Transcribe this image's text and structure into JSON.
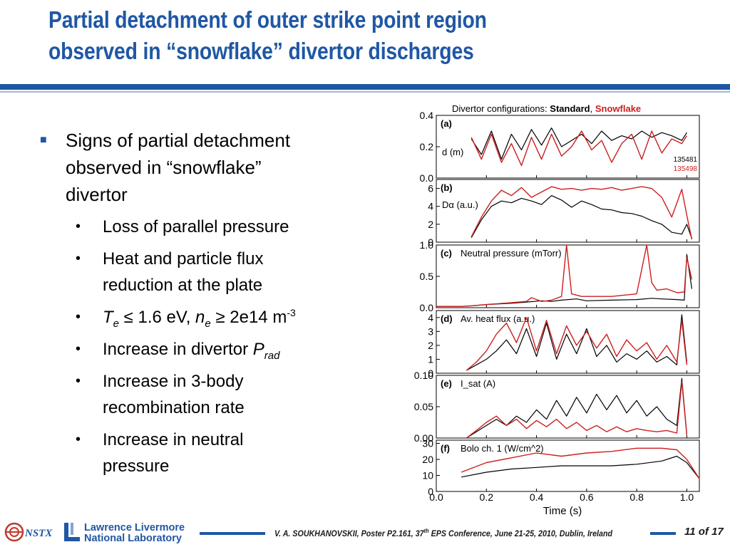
{
  "title_lines": [
    "Partial detachment of outer strike point region",
    "observed in “snowflake” divertor discharges"
  ],
  "bullet": {
    "main_lines": [
      "Signs of partial detachment",
      "observed in “snowflake”",
      "divertor"
    ],
    "sub": {
      "loss": "Loss of parallel pressure",
      "heat_lines": [
        "Heat and particle flux",
        "reduction at the plate"
      ],
      "te_sym": "T",
      "te_sub": "e",
      "te_mid": " ≤ 1.6 eV, ",
      "ne_sym": "n",
      "ne_sub": "e",
      "ne_mid": " ≥ 2e14 m",
      "ne_exp": "-3",
      "prad_pre": "Increase in divertor ",
      "prad_sym": "P",
      "prad_sub": "rad",
      "recomb_lines": [
        "Increase in 3-body",
        "recombination rate"
      ],
      "neutral_lines": [
        "Increase in neutral",
        "pressure"
      ]
    }
  },
  "footer": {
    "pre": "V. A. SOUKHANOVSKII, Poster P2.161, 37",
    "sup": "th",
    "post": " EPS Conference, June 21-25, 2010, Dublin, Ireland",
    "page": "11 of 17",
    "nstx": "NSTX",
    "lab_lines": [
      "Lawrence Livermore",
      "National Laboratory"
    ]
  },
  "colors": {
    "standard": "#000000",
    "snowflake": "#cc1f1f",
    "title": "#1f57a4"
  },
  "chart_data": {
    "type": "line",
    "header_prefix": "Divertor configurations: ",
    "header_standard": "Standard",
    "header_sep": ", ",
    "header_snowflake": "Snowflake",
    "xlabel": "Time (s)",
    "xlim": [
      0.0,
      1.05
    ],
    "xticks": [
      "0.0",
      "0.2",
      "0.4",
      "0.6",
      "0.8",
      "1.0"
    ],
    "shots": [
      "135481",
      "135498"
    ],
    "panels": [
      {
        "label": "(a)",
        "annotation": "d (m)",
        "ylim": [
          0,
          0.4
        ],
        "yticks": [
          0.0,
          0.2,
          0.4
        ],
        "ytick_labels": [
          "0.0",
          "0.2",
          "0.4"
        ],
        "series": [
          {
            "style": "standard",
            "x": [
              0.14,
              0.18,
              0.22,
              0.26,
              0.3,
              0.34,
              0.38,
              0.42,
              0.46,
              0.5,
              0.54,
              0.58,
              0.62,
              0.66,
              0.7,
              0.74,
              0.78,
              0.82,
              0.86,
              0.9,
              0.94,
              0.98,
              1.0
            ],
            "y": [
              0.25,
              0.15,
              0.3,
              0.12,
              0.28,
              0.18,
              0.31,
              0.21,
              0.32,
              0.2,
              0.24,
              0.28,
              0.22,
              0.3,
              0.24,
              0.27,
              0.25,
              0.3,
              0.26,
              0.29,
              0.27,
              0.24,
              0.29
            ]
          },
          {
            "style": "snowflake",
            "x": [
              0.14,
              0.18,
              0.22,
              0.26,
              0.3,
              0.34,
              0.38,
              0.42,
              0.46,
              0.5,
              0.54,
              0.58,
              0.62,
              0.66,
              0.7,
              0.74,
              0.78,
              0.82,
              0.86,
              0.9,
              0.94,
              0.98,
              1.0
            ],
            "y": [
              0.26,
              0.12,
              0.28,
              0.1,
              0.22,
              0.08,
              0.26,
              0.12,
              0.28,
              0.14,
              0.2,
              0.3,
              0.18,
              0.24,
              0.1,
              0.22,
              0.28,
              0.12,
              0.3,
              0.16,
              0.25,
              0.22,
              0.27
            ]
          }
        ]
      },
      {
        "label": "(b)",
        "annotation": "Dα (a.u.)",
        "ylim": [
          0,
          7
        ],
        "yticks": [
          0,
          2,
          4,
          6
        ],
        "ytick_labels": [
          "0",
          "2",
          "4",
          "6"
        ],
        "series": [
          {
            "style": "standard",
            "x": [
              0.14,
              0.18,
              0.22,
              0.26,
              0.3,
              0.34,
              0.38,
              0.42,
              0.46,
              0.5,
              0.54,
              0.58,
              0.62,
              0.66,
              0.7,
              0.74,
              0.78,
              0.82,
              0.86,
              0.9,
              0.94,
              0.98,
              1.0,
              1.02
            ],
            "y": [
              0.5,
              2.5,
              4.0,
              4.6,
              4.4,
              4.9,
              4.6,
              4.2,
              5.2,
              4.7,
              3.9,
              4.6,
              4.2,
              3.7,
              3.6,
              3.3,
              3.2,
              2.9,
              2.4,
              2.0,
              1.1,
              0.9,
              2.0,
              0.4
            ]
          },
          {
            "style": "snowflake",
            "x": [
              0.14,
              0.18,
              0.22,
              0.26,
              0.3,
              0.34,
              0.38,
              0.42,
              0.46,
              0.5,
              0.54,
              0.58,
              0.62,
              0.66,
              0.7,
              0.74,
              0.78,
              0.82,
              0.86,
              0.9,
              0.94,
              0.98,
              1.0,
              1.02
            ],
            "y": [
              0.6,
              2.8,
              4.6,
              5.8,
              5.2,
              6.1,
              5.0,
              5.6,
              6.2,
              5.9,
              6.0,
              5.8,
              6.0,
              5.9,
              6.1,
              5.8,
              6.0,
              6.2,
              6.0,
              5.0,
              2.8,
              5.9,
              3.0,
              0.3
            ]
          }
        ]
      },
      {
        "label": "(c)",
        "annotation": "Neutral pressure (mTorr)",
        "ylim": [
          0,
          1.0
        ],
        "yticks": [
          0.0,
          0.5,
          1.0
        ],
        "ytick_labels": [
          "0.0",
          "0.5",
          "1.0"
        ],
        "series": [
          {
            "style": "standard",
            "x": [
              0.0,
              0.1,
              0.14,
              0.2,
              0.3,
              0.36,
              0.42,
              0.46,
              0.5,
              0.56,
              0.6,
              0.7,
              0.8,
              0.86,
              0.9,
              0.96,
              0.99,
              1.0,
              1.02
            ],
            "y": [
              0.02,
              0.02,
              0.03,
              0.05,
              0.07,
              0.09,
              0.11,
              0.1,
              0.12,
              0.14,
              0.11,
              0.12,
              0.13,
              0.15,
              0.14,
              0.13,
              0.12,
              0.85,
              0.3
            ]
          },
          {
            "style": "snowflake",
            "x": [
              0.0,
              0.1,
              0.14,
              0.2,
              0.3,
              0.36,
              0.38,
              0.42,
              0.46,
              0.5,
              0.52,
              0.54,
              0.58,
              0.7,
              0.8,
              0.84,
              0.86,
              0.88,
              0.92,
              0.96,
              0.99,
              1.0,
              1.02
            ],
            "y": [
              0.02,
              0.02,
              0.03,
              0.05,
              0.08,
              0.1,
              0.16,
              0.1,
              0.12,
              0.18,
              1.0,
              0.22,
              0.18,
              0.18,
              0.22,
              1.0,
              0.4,
              0.28,
              0.3,
              0.24,
              0.25,
              0.8,
              0.45
            ]
          }
        ]
      },
      {
        "label": "(d)",
        "annotation": "Av. heat flux (a.u.)",
        "ylim": [
          0,
          4.5
        ],
        "yticks": [
          0,
          1,
          2,
          3,
          4
        ],
        "ytick_labels": [
          "0",
          "1",
          "2",
          "3",
          "4"
        ],
        "series": [
          {
            "style": "standard",
            "x": [
              0.12,
              0.16,
              0.2,
              0.24,
              0.28,
              0.32,
              0.36,
              0.4,
              0.44,
              0.48,
              0.52,
              0.56,
              0.6,
              0.64,
              0.68,
              0.72,
              0.76,
              0.8,
              0.84,
              0.88,
              0.92,
              0.96,
              0.98,
              1.0
            ],
            "y": [
              0.2,
              0.6,
              1.0,
              1.6,
              2.4,
              1.4,
              3.2,
              1.2,
              3.6,
              1.0,
              2.8,
              1.4,
              3.2,
              1.2,
              2.0,
              0.8,
              1.4,
              1.0,
              1.6,
              0.8,
              1.2,
              0.6,
              4.2,
              0.8
            ]
          },
          {
            "style": "snowflake",
            "x": [
              0.12,
              0.16,
              0.2,
              0.24,
              0.28,
              0.32,
              0.36,
              0.4,
              0.44,
              0.48,
              0.52,
              0.56,
              0.6,
              0.64,
              0.68,
              0.72,
              0.76,
              0.8,
              0.84,
              0.88,
              0.92,
              0.96,
              0.98,
              1.0
            ],
            "y": [
              0.2,
              0.8,
              1.6,
              2.8,
              3.6,
              2.2,
              4.0,
              1.6,
              3.8,
              1.4,
              3.4,
              2.0,
              3.0,
              1.8,
              2.8,
              1.2,
              2.4,
              1.6,
              2.2,
              1.0,
              2.0,
              0.8,
              3.8,
              0.6
            ]
          }
        ]
      },
      {
        "label": "(e)",
        "annotation": "I_sat (A)",
        "ylim": [
          0,
          0.1
        ],
        "yticks": [
          0.0,
          0.05,
          0.1
        ],
        "ytick_labels": [
          "0.00",
          "0.05",
          "0.10"
        ],
        "series": [
          {
            "style": "standard",
            "x": [
              0.12,
              0.16,
              0.2,
              0.24,
              0.28,
              0.32,
              0.36,
              0.4,
              0.44,
              0.48,
              0.52,
              0.56,
              0.6,
              0.64,
              0.68,
              0.72,
              0.76,
              0.8,
              0.84,
              0.88,
              0.92,
              0.96,
              0.98,
              1.0
            ],
            "y": [
              0.0,
              0.01,
              0.02,
              0.03,
              0.02,
              0.035,
              0.025,
              0.045,
              0.03,
              0.06,
              0.035,
              0.065,
              0.04,
              0.07,
              0.045,
              0.068,
              0.04,
              0.06,
              0.035,
              0.05,
              0.03,
              0.02,
              0.095,
              0.005
            ]
          },
          {
            "style": "snowflake",
            "x": [
              0.12,
              0.16,
              0.2,
              0.24,
              0.28,
              0.32,
              0.36,
              0.4,
              0.44,
              0.48,
              0.52,
              0.56,
              0.6,
              0.64,
              0.68,
              0.72,
              0.76,
              0.8,
              0.84,
              0.88,
              0.92,
              0.96,
              0.98,
              1.0
            ],
            "y": [
              0.0,
              0.012,
              0.025,
              0.035,
              0.02,
              0.03,
              0.015,
              0.028,
              0.018,
              0.03,
              0.015,
              0.025,
              0.012,
              0.02,
              0.01,
              0.018,
              0.01,
              0.015,
              0.012,
              0.01,
              0.012,
              0.008,
              0.09,
              0.005
            ]
          }
        ]
      },
      {
        "label": "(f)",
        "annotation": "Bolo ch. 1 (W/cm^2)",
        "ylim": [
          0,
          32
        ],
        "yticks": [
          0,
          10,
          20,
          30
        ],
        "ytick_labels": [
          "0",
          "10",
          "20",
          "30"
        ],
        "series": [
          {
            "style": "standard",
            "x": [
              0.1,
              0.2,
              0.3,
              0.4,
              0.5,
              0.6,
              0.7,
              0.8,
              0.9,
              0.96,
              1.0,
              1.05
            ],
            "y": [
              9,
              12,
              14,
              15,
              16,
              16,
              16,
              17,
              19,
              22,
              18,
              8
            ]
          },
          {
            "style": "snowflake",
            "x": [
              0.1,
              0.2,
              0.3,
              0.4,
              0.5,
              0.6,
              0.7,
              0.8,
              0.9,
              0.96,
              1.0,
              1.05
            ],
            "y": [
              12,
              18,
              21,
              24,
              22,
              24,
              25,
              27,
              27,
              26,
              20,
              8
            ]
          }
        ]
      }
    ]
  }
}
